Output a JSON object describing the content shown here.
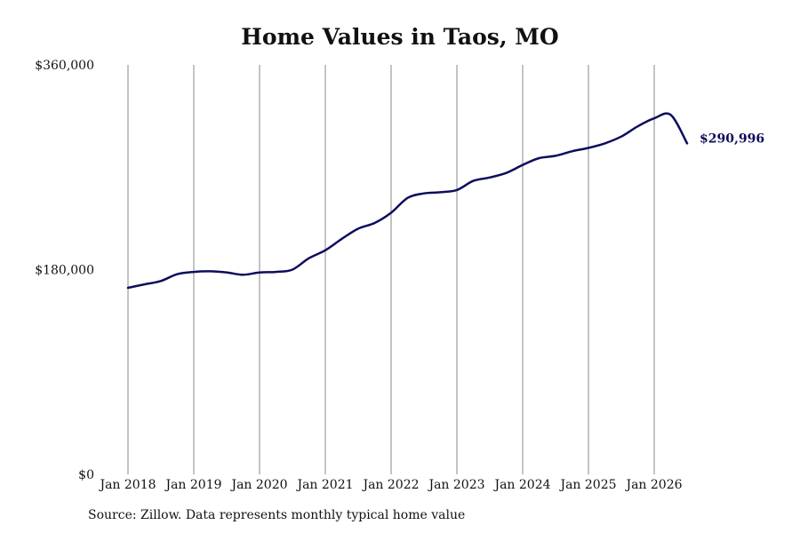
{
  "title": "Home Values in Taos, MO",
  "source": "Source: Zillow. Data represents monthly typical home value",
  "colors": {
    "line": "#0d0d5c",
    "grid": "#8a8a8a",
    "text": "#111111"
  },
  "chart_data": {
    "type": "line",
    "title": "Home Values in Taos, MO",
    "xlabel": "",
    "ylabel": "",
    "ylim": [
      0,
      360000
    ],
    "yticks": [
      0,
      180000,
      360000
    ],
    "ytick_labels": [
      "$0",
      "$180,000",
      "$360,000"
    ],
    "xticks": [
      "2018-01",
      "2019-01",
      "2020-01",
      "2021-01",
      "2022-01",
      "2023-01",
      "2024-01",
      "2025-01",
      "2026-01"
    ],
    "xtick_labels": [
      "Jan 2018",
      "Jan 2019",
      "Jan 2020",
      "Jan 2021",
      "Jan 2022",
      "Jan 2023",
      "Jan 2024",
      "Jan 2025",
      "Jan 2026"
    ],
    "grid": "vertical",
    "end_label": "$290,996",
    "series": [
      {
        "x": [
          "2018-01",
          "2018-04",
          "2018-07",
          "2018-10",
          "2019-01",
          "2019-04",
          "2019-07",
          "2019-10",
          "2020-01",
          "2020-04",
          "2020-07",
          "2020-10",
          "2021-01",
          "2021-04",
          "2021-07",
          "2021-10",
          "2022-01",
          "2022-04",
          "2022-07",
          "2022-10",
          "2023-01",
          "2023-04",
          "2023-07",
          "2023-10",
          "2024-01",
          "2024-04",
          "2024-07",
          "2024-10",
          "2025-01",
          "2025-04",
          "2025-07",
          "2025-10",
          "2026-01",
          "2026-04",
          "2026-07"
        ],
        "y": [
          164000,
          167000,
          170000,
          176000,
          178000,
          178500,
          177500,
          175500,
          177500,
          178000,
          180000,
          190000,
          197000,
          207000,
          216000,
          221000,
          230000,
          243000,
          247000,
          248000,
          250000,
          258000,
          261000,
          265000,
          272000,
          278000,
          280000,
          284000,
          287000,
          291000,
          297000,
          306000,
          313000,
          316000,
          290996
        ]
      }
    ]
  }
}
